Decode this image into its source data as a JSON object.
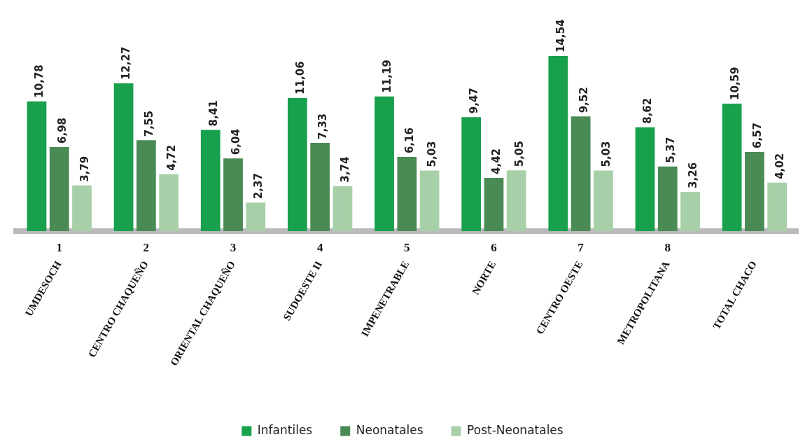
{
  "chart_data": {
    "type": "bar",
    "categories": [
      "UMDESOCH",
      "CENTRO CHAQUEÑO",
      "ORIENTAL CHAQUEÑO",
      "SUDOESTE II",
      "IMPENETRABLE",
      "NORTE",
      "CENTRO OESTE",
      "METROPOLITANA",
      "TOTAL CHACO"
    ],
    "series": [
      {
        "name": "Infantiles",
        "color": "#18a04c",
        "values": [
          10.78,
          12.27,
          8.41,
          11.06,
          11.19,
          9.47,
          14.54,
          8.62,
          10.59
        ],
        "value_labels": [
          "10,78",
          "12,27",
          "8,41",
          "11,06",
          "11,19",
          "9,47",
          "14,54",
          "8,62",
          "10,59"
        ]
      },
      {
        "name": "Neonatales",
        "color": "#4a8a55",
        "values": [
          6.98,
          7.55,
          6.04,
          7.33,
          6.16,
          4.42,
          9.52,
          5.37,
          6.57
        ],
        "value_labels": [
          "6,98",
          "7,55",
          "6,04",
          "7,33",
          "6,16",
          "4,42",
          "9,52",
          "5,37",
          "6,57"
        ]
      },
      {
        "name": "Post-Neonatales",
        "color": "#a8d0a8",
        "values": [
          3.79,
          4.72,
          2.37,
          3.74,
          5.03,
          5.05,
          5.03,
          3.26,
          4.02
        ],
        "value_labels": [
          "3,79",
          "4,72",
          "2,37",
          "3,74",
          "5,03",
          "5,05",
          "5,03",
          "3,26",
          "4,02"
        ]
      }
    ],
    "annotations": [
      "1",
      "2",
      "3",
      "4",
      "5",
      "6",
      "7",
      "8"
    ],
    "grid": false,
    "legend": "bottom"
  }
}
